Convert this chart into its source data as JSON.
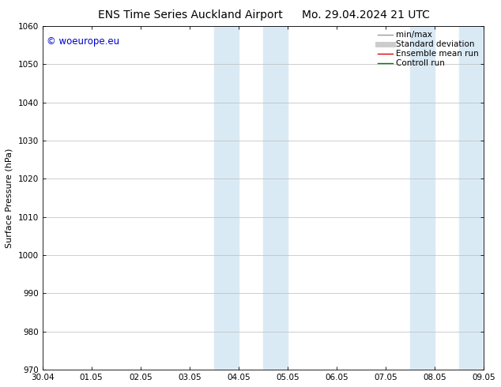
{
  "title_left": "ENS Time Series Auckland Airport",
  "title_right": "Mo. 29.04.2024 21 UTC",
  "ylabel": "Surface Pressure (hPa)",
  "ylim": [
    970,
    1060
  ],
  "yticks": [
    970,
    980,
    990,
    1000,
    1010,
    1020,
    1030,
    1040,
    1050,
    1060
  ],
  "xtick_labels": [
    "30.04",
    "01.05",
    "02.05",
    "03.05",
    "04.05",
    "05.05",
    "06.05",
    "07.05",
    "08.05",
    "09.05"
  ],
  "xtick_positions": [
    0,
    1,
    2,
    3,
    4,
    5,
    6,
    7,
    8,
    9
  ],
  "xlim": [
    0,
    9
  ],
  "shaded_bands": [
    {
      "x_start": 3.5,
      "x_end": 4.0
    },
    {
      "x_start": 4.5,
      "x_end": 5.0
    },
    {
      "x_start": 7.5,
      "x_end": 8.0
    },
    {
      "x_start": 8.5,
      "x_end": 9.0
    }
  ],
  "shaded_color": "#daeaf5",
  "watermark_text": "© woeurope.eu",
  "watermark_color": "#0000cc",
  "legend_entries": [
    {
      "label": "min/max",
      "color": "#999999",
      "lw": 1.0,
      "style": "solid"
    },
    {
      "label": "Standard deviation",
      "color": "#cccccc",
      "lw": 5,
      "style": "solid"
    },
    {
      "label": "Ensemble mean run",
      "color": "#dd0000",
      "lw": 1.0,
      "style": "solid"
    },
    {
      "label": "Controll run",
      "color": "#007700",
      "lw": 1.0,
      "style": "solid"
    }
  ],
  "bg_color": "#ffffff",
  "grid_color": "#bbbbbb",
  "title_fontsize": 10,
  "label_fontsize": 8,
  "tick_fontsize": 7.5,
  "legend_fontsize": 7.5
}
